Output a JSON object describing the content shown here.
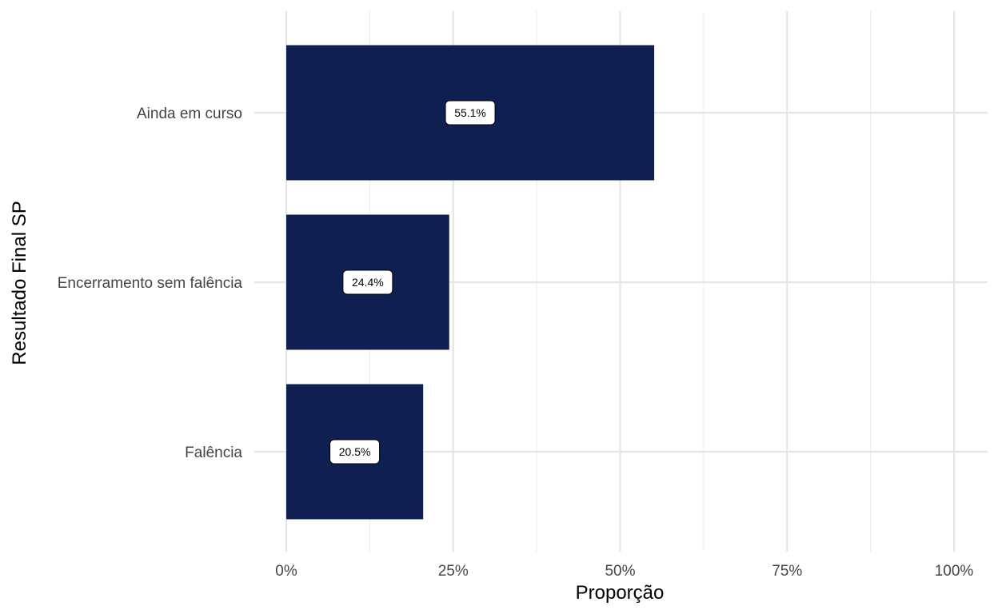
{
  "chart_data": {
    "type": "bar",
    "orientation": "horizontal",
    "categories": [
      "Ainda em curso",
      "Encerramento sem falência",
      "Falência"
    ],
    "values": [
      55.1,
      24.4,
      20.5
    ],
    "data_labels": [
      "55.1%",
      "24.4%",
      "20.5%"
    ],
    "xlabel": "Proporção",
    "ylabel": "Resultado Final SP",
    "xlim": [
      0,
      100
    ],
    "x_ticks": [
      0,
      25,
      50,
      75,
      100
    ],
    "x_tick_labels": [
      "0%",
      "25%",
      "50%",
      "75%",
      "100%"
    ],
    "bar_color": "#101f52",
    "grid": true,
    "legend": "none"
  }
}
